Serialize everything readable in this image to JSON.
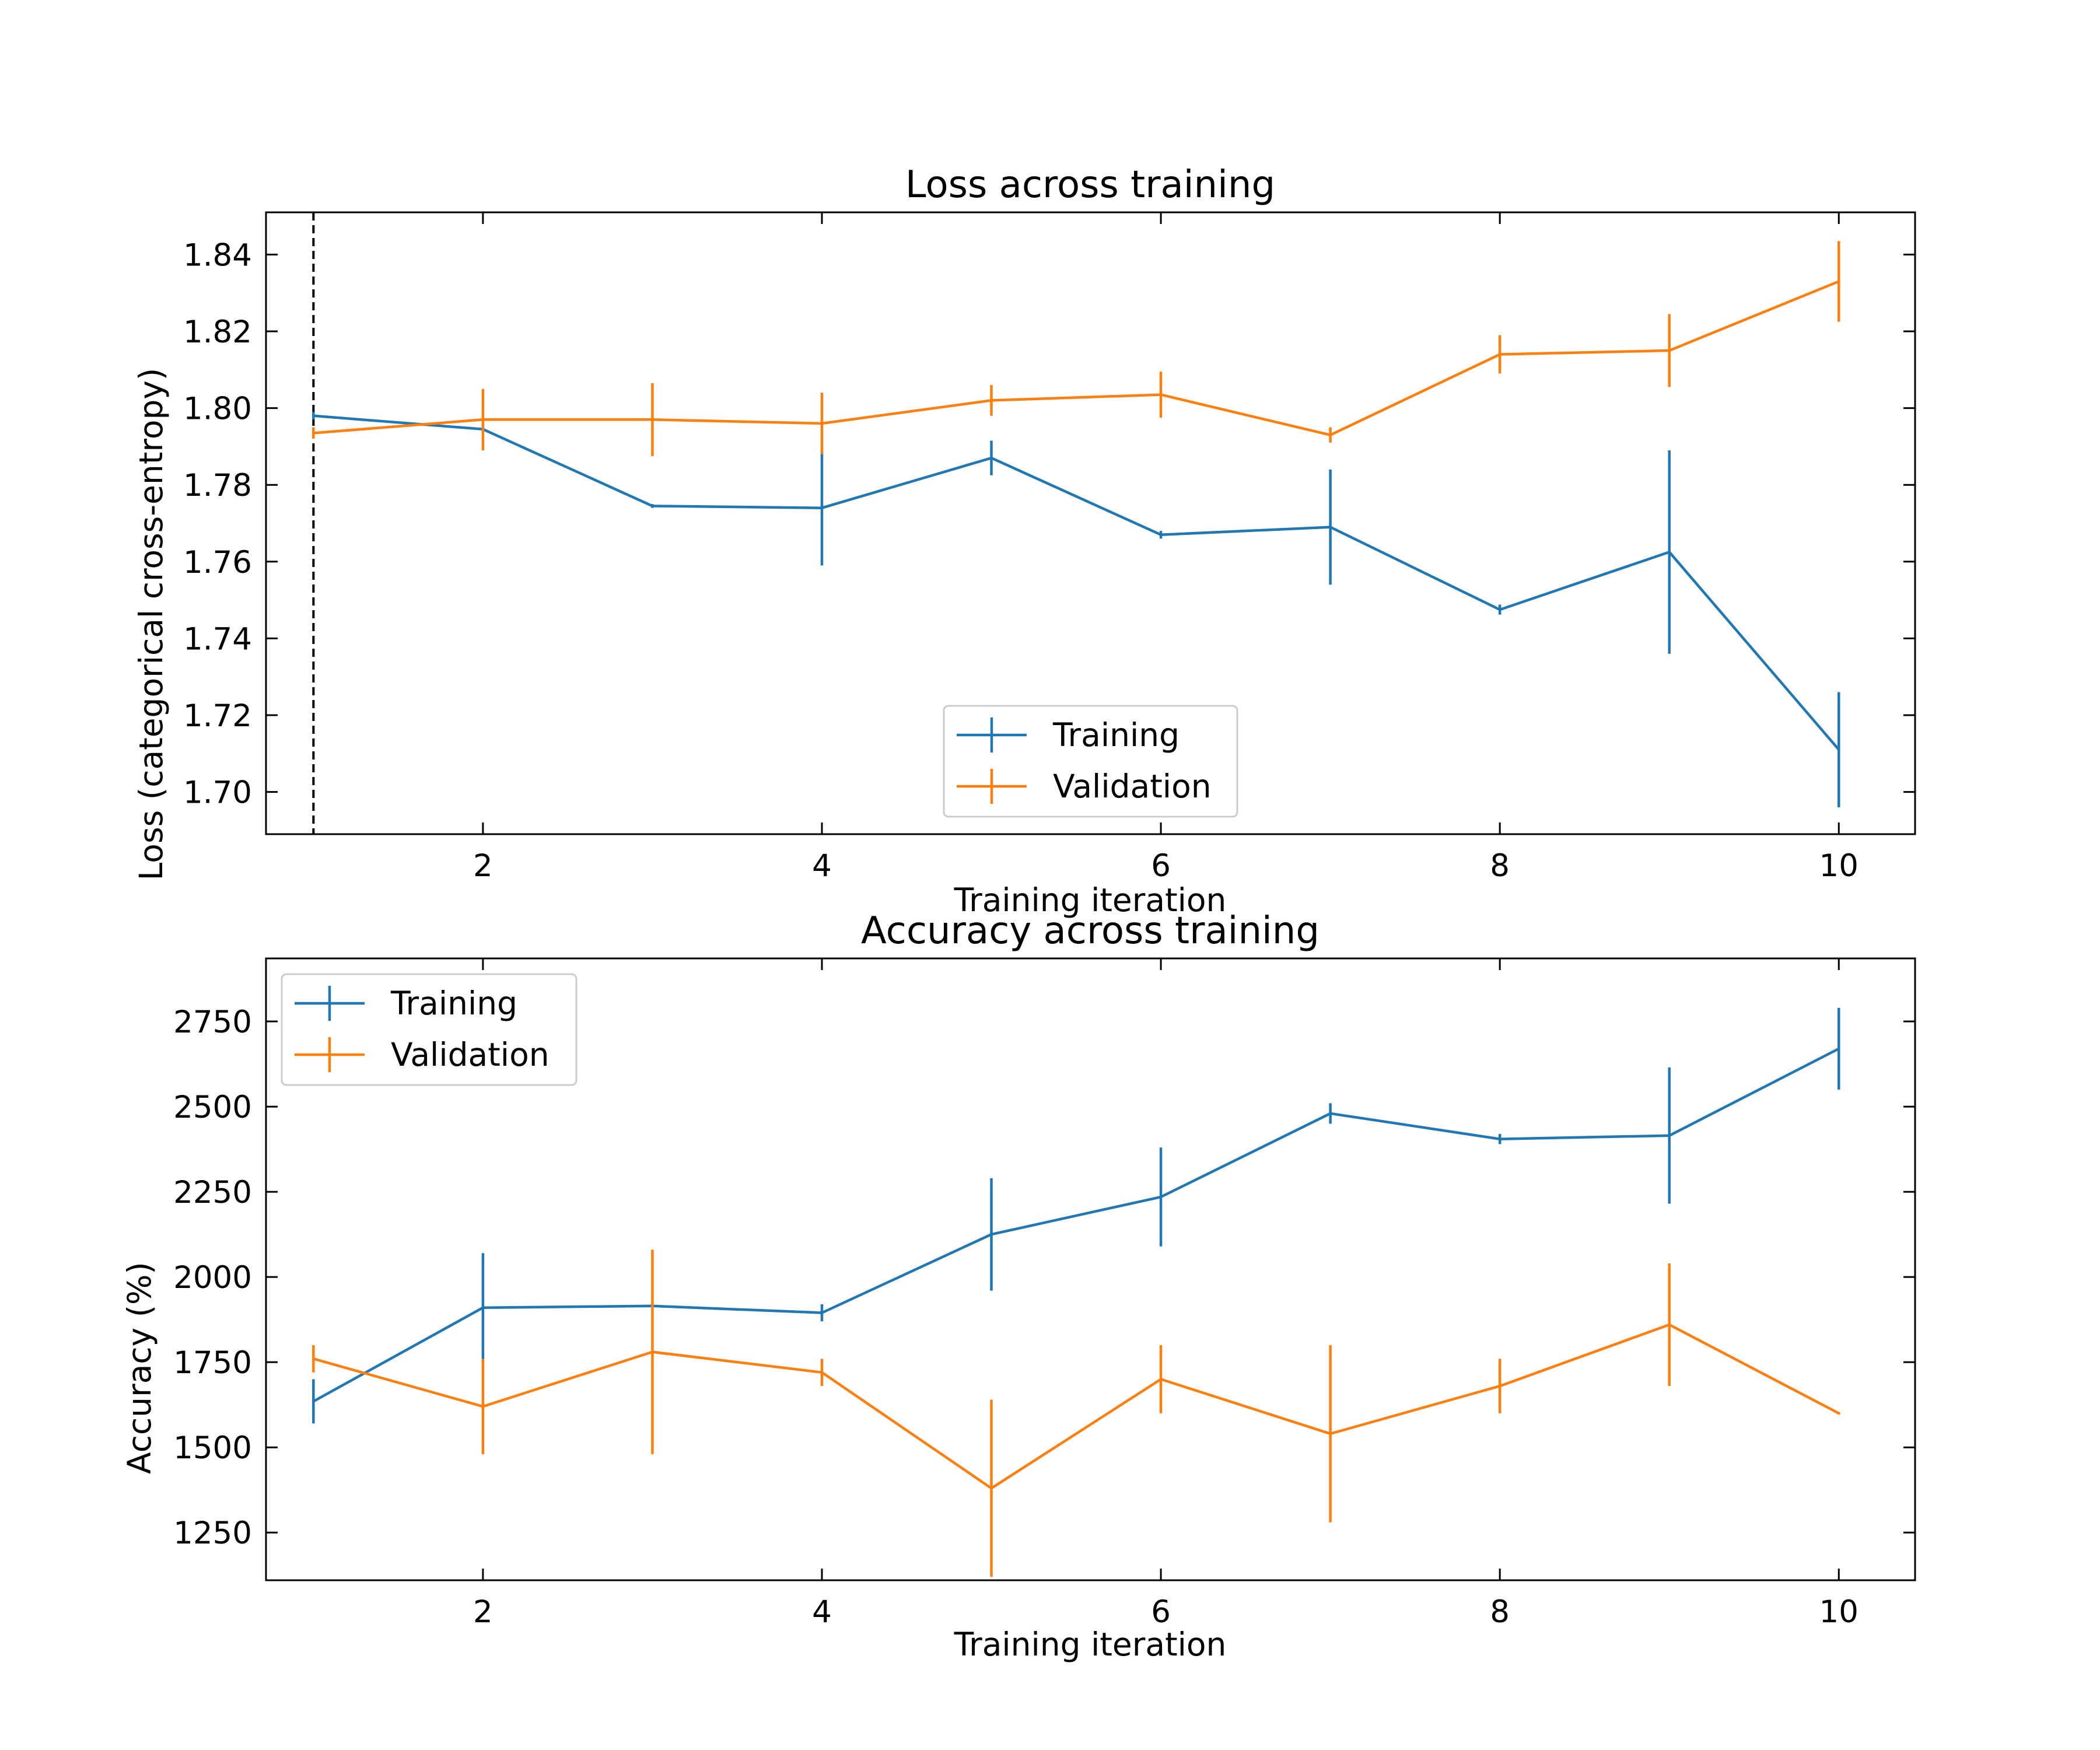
{
  "chart_data": [
    {
      "type": "line",
      "title": "Loss across training",
      "xlabel": "Training iteration",
      "ylabel": "Loss (categorical cross-entropy)",
      "xlim": [
        0.72,
        10.45
      ],
      "ylim": [
        1.689,
        1.851
      ],
      "xticks": [
        2,
        4,
        6,
        8,
        10
      ],
      "yticks": [
        1.7,
        1.72,
        1.74,
        1.76,
        1.78,
        1.8,
        1.82,
        1.84
      ],
      "ytick_labels": [
        "1.70",
        "1.72",
        "1.74",
        "1.76",
        "1.78",
        "1.80",
        "1.82",
        "1.84"
      ],
      "vline_x": 1,
      "legend": "lower-center",
      "x": [
        1,
        2,
        3,
        4,
        5,
        6,
        7,
        8,
        9,
        10
      ],
      "series": [
        {
          "name": "Training",
          "color": "#1f77b4",
          "values": [
            1.798,
            1.7945,
            1.7745,
            1.774,
            1.787,
            1.767,
            1.769,
            1.7475,
            1.7625,
            1.711
          ],
          "errors": [
            0.001,
            0.001,
            0.0005,
            0.015,
            0.0045,
            0.001,
            0.015,
            0.0013,
            0.0265,
            0.015
          ]
        },
        {
          "name": "Validation",
          "color": "#ff7f0e",
          "values": [
            1.7935,
            1.797,
            1.797,
            1.796,
            1.802,
            1.8035,
            1.793,
            1.814,
            1.815,
            1.833
          ],
          "errors": [
            0.0015,
            0.008,
            0.0095,
            0.008,
            0.004,
            0.006,
            0.002,
            0.005,
            0.0095,
            0.0105
          ]
        }
      ]
    },
    {
      "type": "line",
      "title": "Accuracy across training",
      "xlabel": "Training iteration",
      "ylabel": "Accuracy (%)",
      "xlim": [
        0.72,
        10.45
      ],
      "ylim": [
        1110,
        2935
      ],
      "xticks": [
        2,
        4,
        6,
        8,
        10
      ],
      "yticks": [
        1250,
        1500,
        1750,
        2000,
        2250,
        2500,
        2750
      ],
      "ytick_labels": [
        "1250",
        "1500",
        "1750",
        "2000",
        "2250",
        "2500",
        "2750"
      ],
      "legend": "top-left",
      "x": [
        1,
        2,
        3,
        4,
        5,
        6,
        7,
        8,
        9,
        10
      ],
      "series": [
        {
          "name": "Training",
          "color": "#1f77b4",
          "values": [
            1635,
            1910,
            1915,
            1895,
            2125,
            2235,
            2480,
            2405,
            2415,
            2670
          ],
          "errors": [
            65,
            160,
            0,
            25,
            165,
            145,
            30,
            15,
            200,
            120
          ]
        },
        {
          "name": "Validation",
          "color": "#ff7f0e",
          "values": [
            1760,
            1620,
            1780,
            1720,
            1380,
            1700,
            1540,
            1680,
            1860,
            1600
          ],
          "errors": [
            40,
            140,
            300,
            40,
            260,
            100,
            260,
            80,
            180,
            0
          ]
        }
      ]
    }
  ]
}
